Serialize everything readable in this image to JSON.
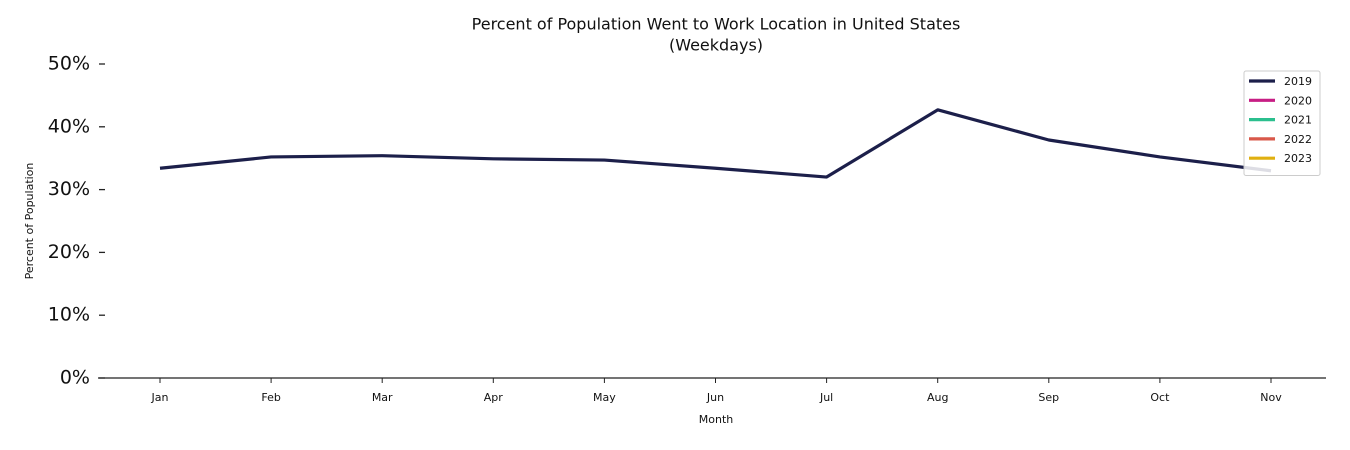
{
  "chart_data": {
    "type": "line",
    "title": "Percent of Population Went to Work Location in United States",
    "subtitle": "(Weekdays)",
    "x_label": "Month",
    "y_label": "Percent of Population",
    "categories": [
      "Jan",
      "Feb",
      "Mar",
      "Apr",
      "May",
      "Jun",
      "Jul",
      "Aug",
      "Sep",
      "Oct",
      "Nov"
    ],
    "series": [
      {
        "name": "2019",
        "color": "#1c1f4a",
        "values": [
          33.4,
          35.2,
          35.4,
          34.9,
          34.7,
          33.4,
          32.0,
          42.7,
          37.9,
          35.2,
          33.0
        ]
      },
      {
        "name": "2020",
        "color": "#c71e84",
        "values": [
          null,
          null,
          null,
          null,
          null,
          null,
          null,
          null,
          null,
          null,
          null
        ]
      },
      {
        "name": "2021",
        "color": "#2bbf8e",
        "values": [
          null,
          null,
          null,
          null,
          null,
          null,
          null,
          null,
          null,
          null,
          null
        ]
      },
      {
        "name": "2022",
        "color": "#d9584a",
        "values": [
          null,
          null,
          null,
          null,
          null,
          null,
          null,
          null,
          null,
          null,
          null
        ]
      },
      {
        "name": "2023",
        "color": "#e0b010",
        "values": [
          null,
          null,
          null,
          null,
          null,
          null,
          null,
          null,
          null,
          null,
          null
        ]
      }
    ],
    "ylim": [
      0,
      50
    ],
    "yticks": [
      {
        "value": 0,
        "label": "0%"
      },
      {
        "value": 10,
        "label": "10%"
      },
      {
        "value": 20,
        "label": "20%"
      },
      {
        "value": 30,
        "label": "30%"
      },
      {
        "value": 40,
        "label": "40%"
      },
      {
        "value": 50,
        "label": "50%"
      }
    ],
    "grid": false,
    "legend": "upper right"
  }
}
